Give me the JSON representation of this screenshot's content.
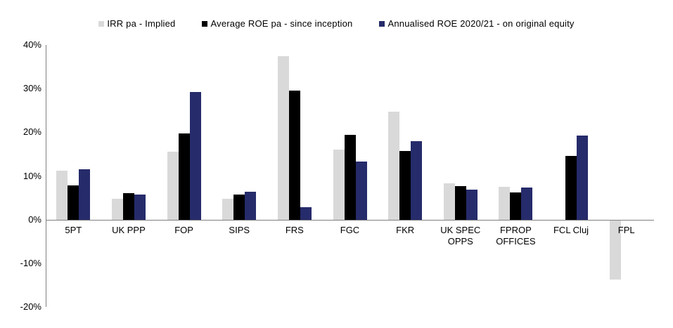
{
  "chart_data": {
    "type": "bar",
    "title": "",
    "legend_position": "top",
    "grid": false,
    "categories": [
      "5PT",
      "UK PPP",
      "FOP",
      "SIPS",
      "FRS",
      "FGC",
      "FKR",
      "UK SPEC\nOPPS",
      "FPROP\nOFFICES",
      "FCL Cluj",
      "FPL"
    ],
    "series": [
      {
        "name": "IRR pa - Implied",
        "color": "#D9D9D9",
        "values": [
          11.2,
          4.7,
          15.6,
          4.7,
          37.5,
          16.0,
          24.7,
          8.3,
          7.5,
          null,
          -13.6
        ]
      },
      {
        "name": "Average ROE pa - since inception",
        "color": "#000000",
        "values": [
          7.8,
          6.1,
          19.7,
          5.7,
          29.5,
          19.4,
          15.7,
          7.7,
          6.2,
          14.6,
          null
        ]
      },
      {
        "name": "Annualised ROE 2020/21 - on original equity",
        "color": "#262B6B",
        "values": [
          11.6,
          5.8,
          29.2,
          6.4,
          2.9,
          13.3,
          17.9,
          6.9,
          7.3,
          19.2,
          null
        ]
      }
    ],
    "y_axis": {
      "min": -20,
      "max": 40,
      "step": 10,
      "tick_format": "percent",
      "tick_labels": [
        "40%",
        "30%",
        "20%",
        "10%",
        "0%",
        "-10%",
        "-20%"
      ]
    },
    "axis_color": "#7f7f7f",
    "text_color": "#000000"
  }
}
